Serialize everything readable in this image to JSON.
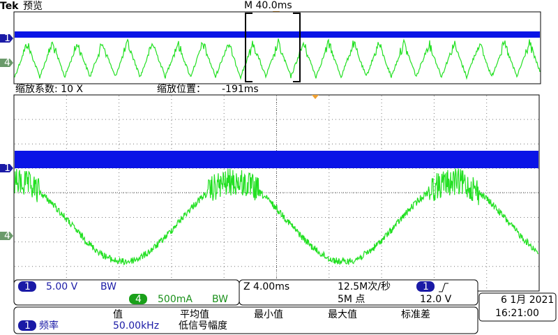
{
  "header": {
    "brand": "Tek",
    "mode": "预览",
    "timebase": "M 40.0ms"
  },
  "markers": {
    "ch1": "1",
    "ch4": "4"
  },
  "zoom": {
    "factor": "缩放系数: 10 X",
    "position_label": "缩放位置：",
    "position": "-191ms"
  },
  "status": {
    "ch1": {
      "number": "1",
      "scale": "5.00 V",
      "bw": "BW"
    },
    "ch4": {
      "number": "4",
      "scale": "500mA",
      "bw": "BW"
    },
    "zoom_scale": "Z 4.00ms",
    "sample_rate": "12.5M次/秒",
    "record": "5M 点",
    "trigger": {
      "channel": "1",
      "level": "12.0 V"
    },
    "date": "6 1月 2021",
    "time": "16:21:00"
  },
  "measure": {
    "headers": [
      "值",
      "平均值",
      "最小值",
      "最大值",
      "标准差"
    ],
    "row": {
      "channel": "1",
      "name": "频率",
      "value": "50.00kHz",
      "note": "低信号幅度"
    }
  }
}
